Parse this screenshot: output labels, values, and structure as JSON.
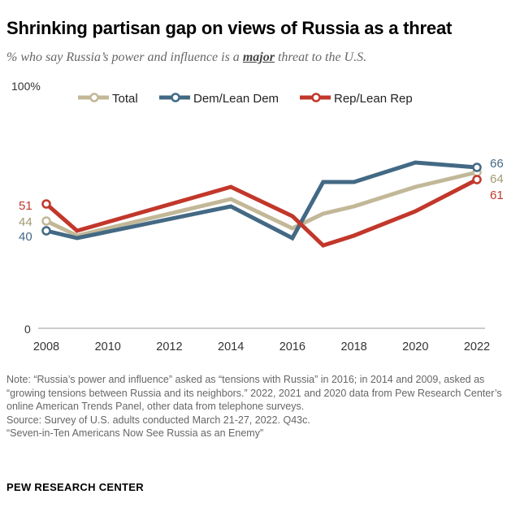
{
  "title": "Shrinking partisan gap on views of Russia as a threat",
  "subtitle_pre": "% who say Russia’s power and influence is a ",
  "subtitle_em": "major",
  "subtitle_post": " threat to the U.S.",
  "notes": [
    "Note: “Russia’s power and influence” asked as “tensions with Russia” in 2016; in 2014 and 2009, asked as “growing tensions between Russia and its neighbors.” 2022, 2021 and 2020 data from Pew Research Center’s online American Trends Panel, other data from telephone surveys.",
    "Source: Survey of U.S. adults conducted March 21-27, 2022. Q43c.",
    "“Seven-in-Ten Americans Now See Russia as an Enemy”"
  ],
  "brand": "PEW RESEARCH CENTER",
  "chart_data": {
    "type": "line",
    "x": [
      2008,
      2009,
      2014,
      2016,
      2017,
      2018,
      2020,
      2022
    ],
    "xticks": [
      "2008",
      "2010",
      "2012",
      "2014",
      "2016",
      "2018",
      "2020",
      "2022"
    ],
    "ytick_labels": [
      "100%",
      "0"
    ],
    "ylim": [
      0,
      100
    ],
    "xlim": [
      2008,
      2022
    ],
    "grid": false,
    "legend": "top",
    "series": [
      {
        "name": "Total",
        "color": "#c2b898",
        "label_color": "#a39a72",
        "values": [
          44,
          38,
          53,
          41,
          47,
          50,
          58,
          64
        ],
        "first_label": "44",
        "last_label": "64"
      },
      {
        "name": "Dem/Lean Dem",
        "color": "#436984",
        "label_color": "#436984",
        "values": [
          40,
          37,
          50,
          37,
          60,
          60,
          68,
          66
        ],
        "first_label": "40",
        "last_label": "66"
      },
      {
        "name": "Rep/Lean Rep",
        "color": "#c2372b",
        "label_color": "#c2372b",
        "values": [
          51,
          40,
          58,
          46,
          34,
          38,
          48,
          61
        ],
        "first_label": "51",
        "last_label": "61"
      }
    ]
  }
}
